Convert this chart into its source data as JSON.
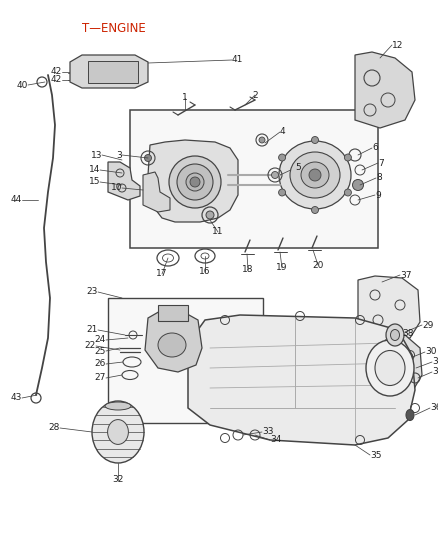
{
  "background_color": "#ffffff",
  "line_color": "#444444",
  "text_color": "#222222",
  "figsize": [
    4.38,
    5.33
  ],
  "dpi": 100
}
